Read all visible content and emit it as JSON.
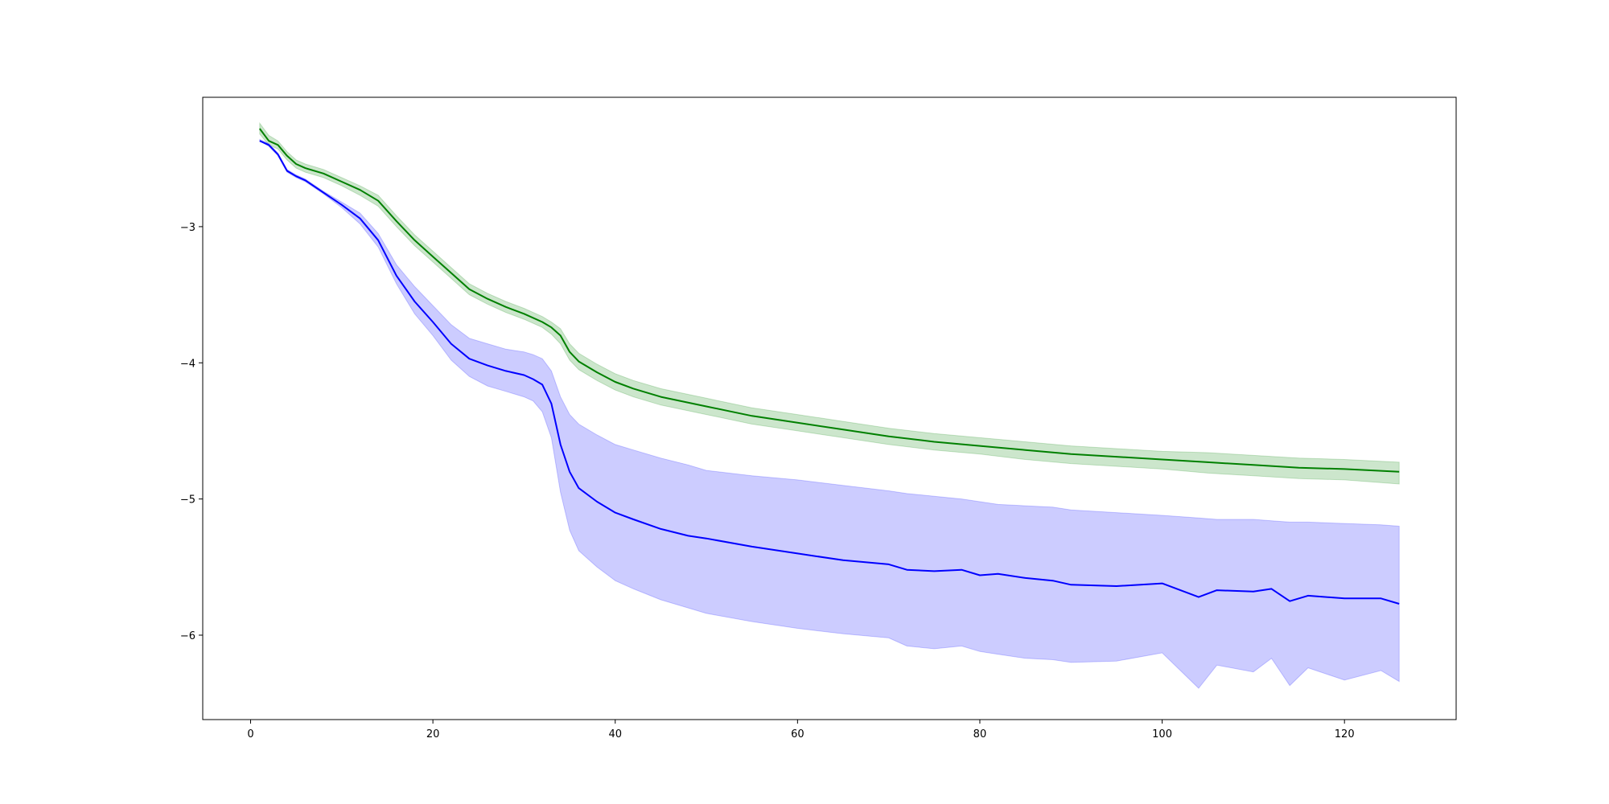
{
  "chart_data": {
    "type": "line",
    "title": "",
    "xlabel": "",
    "ylabel": "",
    "xlim": [
      -5.25,
      132.25
    ],
    "ylim": [
      -6.62,
      -2.05
    ],
    "xticks": [
      0,
      20,
      40,
      60,
      80,
      100,
      120
    ],
    "yticks": [
      -3,
      -4,
      -5,
      -6
    ],
    "xtick_labels": [
      "0",
      "20",
      "40",
      "60",
      "80",
      "100",
      "120"
    ],
    "ytick_labels": [
      "−3",
      "−4",
      "−5",
      "−6"
    ],
    "grid": false,
    "legend": false,
    "series": [
      {
        "color": "#008000",
        "band_color": "#008000",
        "band_alpha": 0.2,
        "x": [
          1,
          2,
          3,
          4,
          5,
          6,
          8,
          10,
          12,
          14,
          16,
          18,
          20,
          22,
          24,
          26,
          28,
          30,
          32,
          33,
          34,
          35,
          36,
          38,
          40,
          42,
          45,
          50,
          55,
          60,
          65,
          70,
          75,
          80,
          85,
          90,
          95,
          100,
          105,
          110,
          115,
          120,
          126
        ],
        "values": [
          -2.28,
          -2.37,
          -2.4,
          -2.48,
          -2.54,
          -2.57,
          -2.61,
          -2.67,
          -2.73,
          -2.81,
          -2.96,
          -3.1,
          -3.22,
          -3.34,
          -3.46,
          -3.53,
          -3.59,
          -3.64,
          -3.7,
          -3.74,
          -3.8,
          -3.92,
          -3.99,
          -4.07,
          -4.14,
          -4.19,
          -4.25,
          -4.32,
          -4.39,
          -4.44,
          -4.49,
          -4.54,
          -4.58,
          -4.61,
          -4.64,
          -4.67,
          -4.69,
          -4.71,
          -4.73,
          -4.75,
          -4.77,
          -4.78,
          -4.8
        ],
        "lower": [
          -2.32,
          -2.4,
          -2.43,
          -2.51,
          -2.57,
          -2.6,
          -2.64,
          -2.7,
          -2.77,
          -2.85,
          -3.0,
          -3.14,
          -3.26,
          -3.38,
          -3.5,
          -3.57,
          -3.63,
          -3.68,
          -3.74,
          -3.79,
          -3.86,
          -3.98,
          -4.05,
          -4.13,
          -4.2,
          -4.25,
          -4.31,
          -4.38,
          -4.45,
          -4.5,
          -4.55,
          -4.6,
          -4.64,
          -4.67,
          -4.71,
          -4.74,
          -4.76,
          -4.78,
          -4.81,
          -4.83,
          -4.85,
          -4.86,
          -4.89
        ],
        "upper": [
          -2.24,
          -2.33,
          -2.37,
          -2.45,
          -2.51,
          -2.54,
          -2.58,
          -2.64,
          -2.7,
          -2.77,
          -2.92,
          -3.06,
          -3.18,
          -3.3,
          -3.42,
          -3.49,
          -3.55,
          -3.6,
          -3.66,
          -3.7,
          -3.75,
          -3.86,
          -3.93,
          -4.01,
          -4.08,
          -4.13,
          -4.19,
          -4.26,
          -4.33,
          -4.38,
          -4.43,
          -4.48,
          -4.52,
          -4.55,
          -4.58,
          -4.61,
          -4.63,
          -4.65,
          -4.66,
          -4.68,
          -4.7,
          -4.71,
          -4.73
        ]
      },
      {
        "color": "#0000ff",
        "band_color": "#0000ff",
        "band_alpha": 0.2,
        "x": [
          1,
          2,
          3,
          4,
          5,
          6,
          8,
          10,
          12,
          14,
          16,
          18,
          20,
          22,
          24,
          26,
          28,
          30,
          31,
          32,
          33,
          34,
          35,
          36,
          38,
          40,
          42,
          45,
          48,
          50,
          55,
          60,
          65,
          70,
          72,
          75,
          78,
          80,
          82,
          85,
          88,
          90,
          95,
          100,
          104,
          106,
          110,
          112,
          114,
          116,
          120,
          124,
          126
        ],
        "values": [
          -2.37,
          -2.4,
          -2.47,
          -2.59,
          -2.63,
          -2.66,
          -2.75,
          -2.84,
          -2.94,
          -3.1,
          -3.36,
          -3.55,
          -3.7,
          -3.86,
          -3.97,
          -4.02,
          -4.06,
          -4.09,
          -4.12,
          -4.16,
          -4.3,
          -4.6,
          -4.8,
          -4.92,
          -5.02,
          -5.1,
          -5.15,
          -5.22,
          -5.27,
          -5.29,
          -5.35,
          -5.4,
          -5.45,
          -5.48,
          -5.52,
          -5.53,
          -5.52,
          -5.56,
          -5.55,
          -5.58,
          -5.6,
          -5.63,
          -5.64,
          -5.62,
          -5.72,
          -5.67,
          -5.68,
          -5.66,
          -5.75,
          -5.71,
          -5.73,
          -5.73,
          -5.77
        ],
        "lower": [
          -2.37,
          -2.41,
          -2.48,
          -2.6,
          -2.64,
          -2.67,
          -2.76,
          -2.86,
          -2.98,
          -3.15,
          -3.42,
          -3.64,
          -3.8,
          -3.98,
          -4.1,
          -4.17,
          -4.21,
          -4.25,
          -4.28,
          -4.36,
          -4.55,
          -4.95,
          -5.23,
          -5.38,
          -5.5,
          -5.6,
          -5.66,
          -5.74,
          -5.8,
          -5.84,
          -5.9,
          -5.95,
          -5.99,
          -6.02,
          -6.08,
          -6.1,
          -6.08,
          -6.12,
          -6.14,
          -6.17,
          -6.18,
          -6.2,
          -6.19,
          -6.13,
          -6.39,
          -6.22,
          -6.27,
          -6.17,
          -6.37,
          -6.24,
          -6.33,
          -6.26,
          -6.34
        ],
        "upper": [
          -2.36,
          -2.39,
          -2.46,
          -2.58,
          -2.62,
          -2.65,
          -2.74,
          -2.82,
          -2.9,
          -3.05,
          -3.28,
          -3.44,
          -3.58,
          -3.72,
          -3.82,
          -3.86,
          -3.9,
          -3.92,
          -3.94,
          -3.97,
          -4.06,
          -4.25,
          -4.38,
          -4.45,
          -4.53,
          -4.6,
          -4.64,
          -4.7,
          -4.75,
          -4.79,
          -4.83,
          -4.86,
          -4.9,
          -4.94,
          -4.96,
          -4.98,
          -5.0,
          -5.02,
          -5.04,
          -5.05,
          -5.06,
          -5.08,
          -5.1,
          -5.12,
          -5.14,
          -5.15,
          -5.15,
          -5.16,
          -5.17,
          -5.17,
          -5.18,
          -5.19,
          -5.2
        ]
      }
    ]
  }
}
